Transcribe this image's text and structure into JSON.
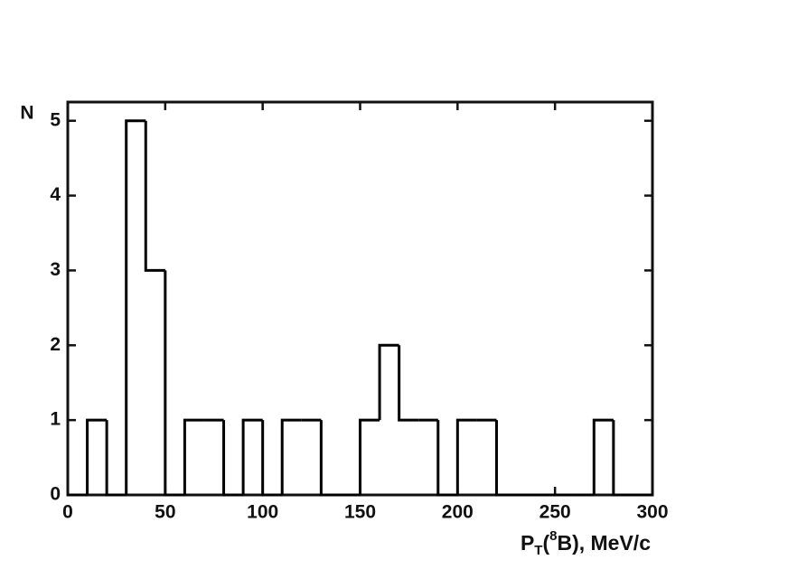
{
  "chart_data": {
    "type": "histogram",
    "ylabel": "N",
    "xlabel": {
      "main": "P",
      "subscript": "T",
      "open": "(",
      "superscript": "8",
      "rest": "B), MeV/c"
    },
    "bins": [
      0,
      10,
      20,
      30,
      40,
      50,
      60,
      70,
      80,
      90,
      100,
      110,
      120,
      130,
      140,
      150,
      160,
      170,
      180,
      190,
      200,
      210,
      220,
      230,
      240,
      250,
      260,
      270,
      280,
      290,
      300
    ],
    "values": [
      0,
      1,
      0,
      5,
      3,
      0,
      1,
      1,
      0,
      1,
      0,
      1,
      1,
      0,
      0,
      1,
      2,
      1,
      1,
      0,
      1,
      1,
      0,
      0,
      0,
      0,
      0,
      1,
      0,
      0
    ],
    "color": "#000000",
    "xlim": [
      0,
      300
    ],
    "xticks": [
      0,
      50,
      100,
      150,
      200,
      250,
      300
    ],
    "ylim": [
      0,
      5.25
    ],
    "yticks": [
      0,
      1,
      2,
      3,
      4,
      5
    ]
  }
}
